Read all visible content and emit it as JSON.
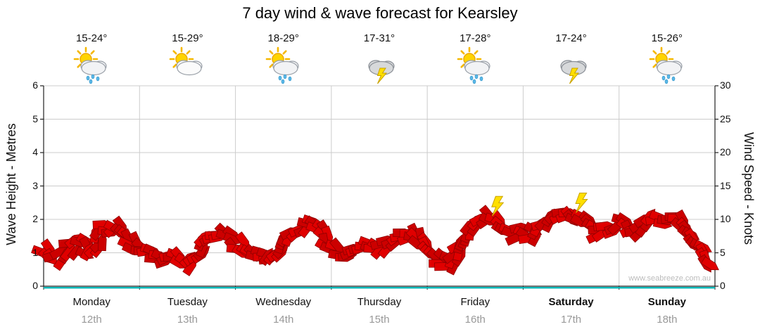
{
  "title": "7 day wind & wave forecast for Kearsley",
  "watermark": "www.seabreeze.com.au",
  "axes": {
    "left_label": "Wave Height - Metres",
    "right_label": "Wind Speed - Knots",
    "left_ticks": [
      0,
      1,
      2,
      3,
      4,
      5,
      6
    ],
    "right_ticks": [
      0,
      5,
      10,
      15,
      20,
      25,
      30
    ]
  },
  "days": [
    {
      "name": "Monday",
      "date": "12th",
      "temp": "15-24°",
      "icon": "sun-cloud-rain",
      "bold": false
    },
    {
      "name": "Tuesday",
      "date": "13th",
      "temp": "15-29°",
      "icon": "sun-cloud",
      "bold": false
    },
    {
      "name": "Wednesday",
      "date": "14th",
      "temp": "18-29°",
      "icon": "sun-cloud-rain",
      "bold": false
    },
    {
      "name": "Thursday",
      "date": "15th",
      "temp": "17-31°",
      "icon": "storm",
      "bold": false
    },
    {
      "name": "Friday",
      "date": "16th",
      "temp": "17-28°",
      "icon": "sun-cloud-rain",
      "bold": false
    },
    {
      "name": "Saturday",
      "date": "17th",
      "temp": "17-24°",
      "icon": "storm",
      "bold": true
    },
    {
      "name": "Sunday",
      "date": "18th",
      "temp": "15-26°",
      "icon": "sun-cloud-rain",
      "bold": true
    }
  ],
  "chart_data": {
    "type": "line",
    "title": "7 day wind & wave forecast for Kearsley",
    "x_axis": {
      "categories": [
        "Monday 12th",
        "Tuesday 13th",
        "Wednesday 14th",
        "Thursday 15th",
        "Friday 16th",
        "Saturday 17th",
        "Sunday 18th"
      ],
      "samples_per_day": 8
    },
    "y_axis_left": {
      "label": "Wave Height - Metres",
      "range": [
        0,
        6
      ],
      "ticks": [
        0,
        1,
        2,
        3,
        4,
        5,
        6
      ]
    },
    "y_axis_right": {
      "label": "Wind Speed - Knots",
      "range": [
        0,
        30
      ],
      "ticks": [
        0,
        5,
        10,
        15,
        20,
        25,
        30
      ]
    },
    "series": [
      {
        "name": "Wind Speed (knots)",
        "style": "wind-arrow-band",
        "color": "#e00000",
        "values": [
          5.5,
          4,
          5.5,
          6.5,
          5,
          8.5,
          9,
          7,
          5,
          4.5,
          4,
          4.5,
          3.5,
          5.5,
          7.5,
          8,
          6.5,
          5.5,
          4.5,
          4,
          6,
          8,
          9.5,
          8.5,
          6,
          5,
          5.5,
          6,
          5.5,
          6.5,
          7.5,
          8,
          5.5,
          4,
          3.5,
          6,
          9,
          10.5,
          9,
          8,
          8,
          7.5,
          9,
          10.5,
          11,
          10,
          8,
          8.5,
          9.5,
          8,
          9,
          10,
          10,
          9.5,
          7,
          5,
          3
        ]
      }
    ],
    "annotations": [
      {
        "type": "lightning-bolt",
        "near": "Friday peak"
      },
      {
        "type": "lightning-bolt",
        "near": "Saturday peak"
      }
    ],
    "grid": true,
    "watermark": "www.seabreeze.com.au"
  },
  "colors": {
    "band_fill": "#e00000",
    "band_fill_alt": "#cc0000",
    "band_outline": "#8f0000",
    "grid": "#cccccc",
    "axis": "#222222",
    "date_text": "#999999",
    "zero_line_cyan": "#00b6b6",
    "lightning": "#ffdf00"
  }
}
